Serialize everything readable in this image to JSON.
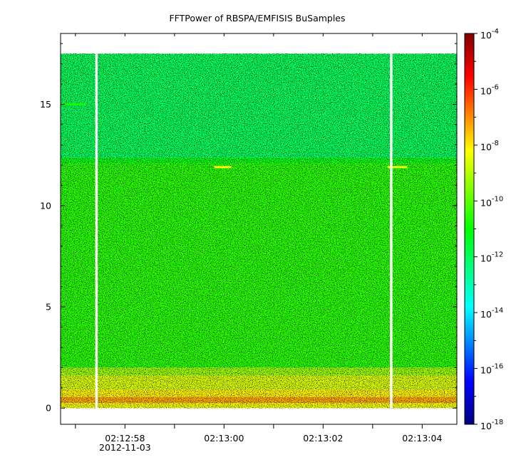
{
  "chart_data": {
    "type": "heatmap",
    "title": "FFTPower of RBSPA/EMFISIS  BuSamples",
    "xlabel": "",
    "ylabel": "",
    "x_axis": {
      "type": "time",
      "range": [
        "02:12:56.7",
        "02:13:04.7"
      ],
      "major_ticks": [
        {
          "value": "02:12:58",
          "label": "02:12:58",
          "sublabel": "2012-11-03"
        },
        {
          "value": "02:13:00",
          "label": "02:13:00",
          "sublabel": ""
        },
        {
          "value": "02:13:02",
          "label": "02:13:02",
          "sublabel": ""
        },
        {
          "value": "02:13:04",
          "label": "02:13:04",
          "sublabel": ""
        }
      ],
      "minor_tick_step_s": 1
    },
    "y_axis": {
      "range": [
        -0.8,
        18.5
      ],
      "ticks": [
        0,
        5,
        10,
        15
      ]
    },
    "colorbar": {
      "scale": "log",
      "range": [
        1e-18,
        0.0001
      ],
      "ticks": [
        {
          "base": "10",
          "exp": "-4"
        },
        {
          "base": "10",
          "exp": "-6"
        },
        {
          "base": "10",
          "exp": "-8"
        },
        {
          "base": "10",
          "exp": "-10"
        },
        {
          "base": "10",
          "exp": "-12"
        },
        {
          "base": "10",
          "exp": "-14"
        },
        {
          "base": "10",
          "exp": "-16"
        },
        {
          "base": "10",
          "exp": "-18"
        }
      ],
      "tick_exponents": [
        -4,
        -6,
        -8,
        -10,
        -12,
        -14,
        -16,
        -18
      ],
      "colormap": "rainbow"
    },
    "spectrogram": {
      "y_max": 17.5,
      "bands": [
        {
          "y_from": 0.0,
          "y_to": 0.25,
          "log_power": -8.3
        },
        {
          "y_from": 0.25,
          "y_to": 0.55,
          "log_power": -7.3
        },
        {
          "y_from": 0.55,
          "y_to": 0.9,
          "log_power": -8.1
        },
        {
          "y_from": 0.9,
          "y_to": 1.6,
          "log_power": -8.6
        },
        {
          "y_from": 1.6,
          "y_to": 2.0,
          "log_power": -9.3
        },
        {
          "y_from": 2.0,
          "y_to": 12.1,
          "log_power": -10.6
        },
        {
          "y_from": 12.1,
          "y_to": 12.35,
          "log_power": -11.2
        },
        {
          "y_from": 12.35,
          "y_to": 17.5,
          "log_power": -12.0
        }
      ],
      "gaps": [
        {
          "from": "02:12:57.4",
          "to": "02:12:57.45"
        },
        {
          "from": "02:13:03.35",
          "to": "02:13:03.4"
        }
      ],
      "features": [
        {
          "t_from": "02:12:56.7",
          "t_to": "02:12:57.2",
          "y": 15.0,
          "log_power": -10.8
        },
        {
          "t_from": "02:12:59.8",
          "t_to": "02:13:00.15",
          "y": 11.9,
          "log_power": -8.1
        },
        {
          "t_from": "02:13:03.3",
          "t_to": "02:13:03.7",
          "y": 11.9,
          "log_power": -8.4
        }
      ]
    }
  }
}
